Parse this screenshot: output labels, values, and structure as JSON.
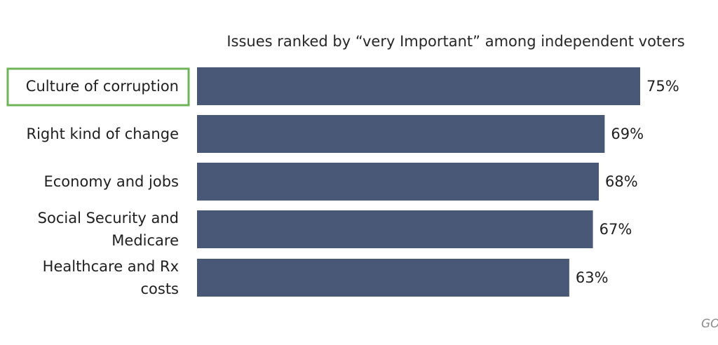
{
  "chart_data": {
    "type": "bar",
    "orientation": "horizontal",
    "title": "Issues ranked by “very Important” among independent voters",
    "categories": [
      [
        "Culture of corruption"
      ],
      [
        "Right kind of change"
      ],
      [
        "Economy and jobs"
      ],
      [
        "Social Security and",
        "Medicare"
      ],
      [
        "Healthcare and Rx",
        "costs"
      ]
    ],
    "values": [
      75,
      69,
      68,
      67,
      63
    ],
    "value_labels": [
      "75%",
      "69%",
      "68%",
      "67%",
      "63%"
    ],
    "unit": "%",
    "highlighted_category_index": 0,
    "grid": false,
    "legend": "none",
    "colors": {
      "bar": "#4a5878",
      "highlight_border": "#6fb35a",
      "text": "#1f1f1f"
    }
  },
  "footer": {
    "mark": "GO"
  }
}
